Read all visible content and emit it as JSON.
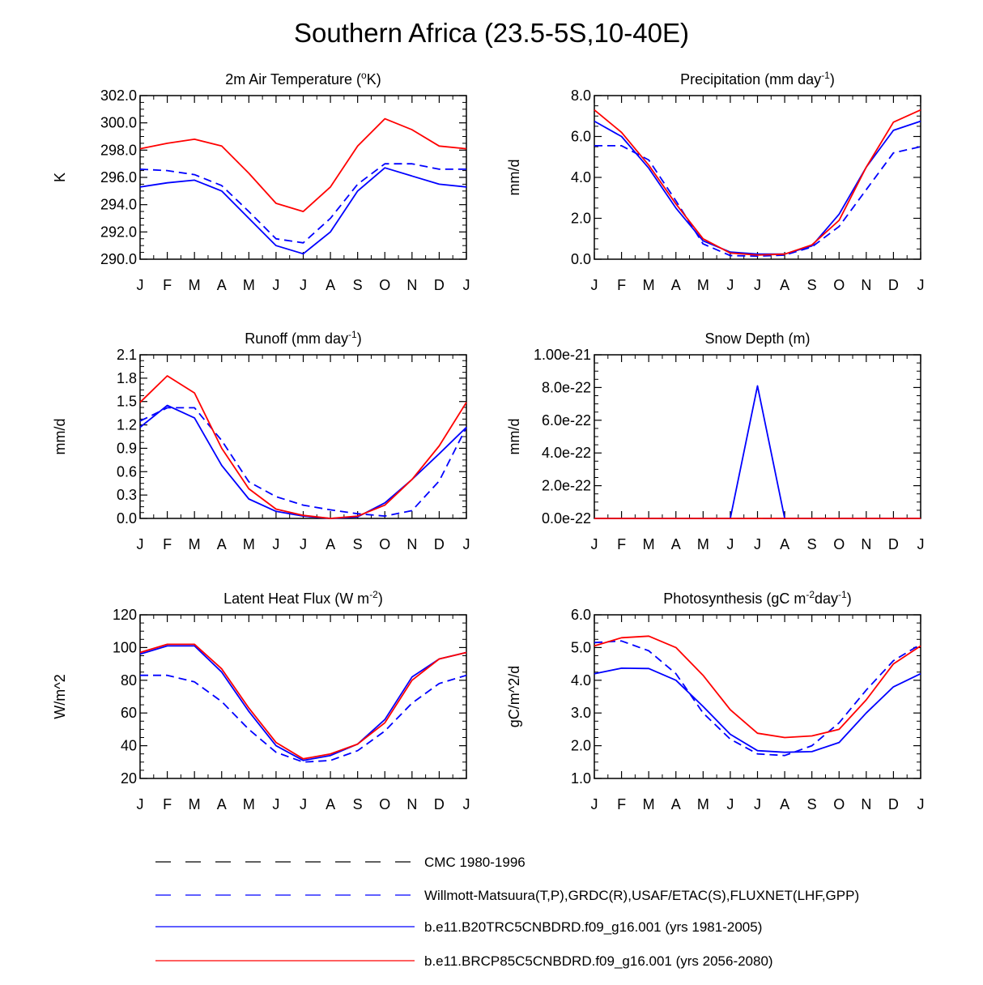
{
  "title": "Southern Africa (23.5-5S,10-40E)",
  "colors": {
    "obs_cmc": "#000000",
    "obs_other": "#0000ff",
    "model_hist": "#0000ff",
    "model_rcp": "#ff0000"
  },
  "legend": [
    {
      "label": "CMC 1980-1996",
      "color": "#000000",
      "style": "dash"
    },
    {
      "label": "Willmott-Matsuura(T,P),GRDC(R),USAF/ETAC(S),FLUXNET(LHF,GPP)",
      "color": "#0000ff",
      "style": "dash"
    },
    {
      "label": "b.e11.B20TRC5CNBDRD.f09_g16.001 (yrs 1981-2005)",
      "color": "#0000ff",
      "style": "solid"
    },
    {
      "label": "b.e11.BRCP85C5CNBDRD.f09_g16.001 (yrs 2056-2080)",
      "color": "#ff0000",
      "style": "solid"
    }
  ],
  "chart_data": [
    {
      "type": "line",
      "title": "2m Air Temperature (",
      "title_sup": "o",
      "title_after": "K)",
      "ylabel": "K",
      "categories": [
        "J",
        "F",
        "M",
        "A",
        "M",
        "J",
        "J",
        "A",
        "S",
        "O",
        "N",
        "D",
        "J"
      ],
      "ylim": [
        290.0,
        302.0
      ],
      "yticks": [
        290.0,
        292.0,
        294.0,
        296.0,
        298.0,
        300.0,
        302.0
      ],
      "ytick_labels": [
        "290.0",
        "292.0",
        "294.0",
        "296.0",
        "298.0",
        "300.0",
        "302.0"
      ],
      "series": [
        {
          "name": "Willmott-Matsuura",
          "color": "#0000ff",
          "style": "dash",
          "values": [
            296.6,
            296.5,
            296.2,
            295.4,
            293.5,
            291.5,
            291.2,
            293.0,
            295.5,
            297.0,
            297.0,
            296.6,
            296.6
          ]
        },
        {
          "name": "b.e11.B20TRC5CNBDRD",
          "color": "#0000ff",
          "style": "solid",
          "values": [
            295.3,
            295.6,
            295.8,
            295.0,
            293.0,
            291.0,
            290.4,
            292.0,
            295.0,
            296.7,
            296.1,
            295.5,
            295.3
          ]
        },
        {
          "name": "b.e11.BRCP85C5CNBDRD",
          "color": "#ff0000",
          "style": "solid",
          "values": [
            298.1,
            298.5,
            298.8,
            298.3,
            296.3,
            294.1,
            293.5,
            295.3,
            298.3,
            300.3,
            299.5,
            298.3,
            298.1
          ]
        }
      ]
    },
    {
      "type": "line",
      "title": "Precipitation (mm day",
      "title_sup": "-1",
      "title_after": ")",
      "ylabel": "mm/d",
      "categories": [
        "J",
        "F",
        "M",
        "A",
        "M",
        "J",
        "J",
        "A",
        "S",
        "O",
        "N",
        "D",
        "J"
      ],
      "ylim": [
        0.0,
        8.0
      ],
      "yticks": [
        0.0,
        2.0,
        4.0,
        6.0,
        8.0
      ],
      "ytick_labels": [
        "0.0",
        "2.0",
        "4.0",
        "6.0",
        "8.0"
      ],
      "series": [
        {
          "name": "Willmott-Matsuura",
          "color": "#0000ff",
          "style": "dash",
          "values": [
            5.55,
            5.55,
            4.85,
            2.85,
            0.75,
            0.18,
            0.15,
            0.2,
            0.6,
            1.6,
            3.4,
            5.2,
            5.5
          ]
        },
        {
          "name": "b.e11.B20TRC5CNBDRD",
          "color": "#0000ff",
          "style": "solid",
          "values": [
            6.75,
            6.0,
            4.45,
            2.5,
            0.9,
            0.35,
            0.25,
            0.25,
            0.65,
            2.2,
            4.5,
            6.3,
            6.75
          ]
        },
        {
          "name": "b.e11.BRCP85C5CNBDRD",
          "color": "#ff0000",
          "style": "solid",
          "values": [
            7.3,
            6.2,
            4.6,
            2.7,
            1.0,
            0.3,
            0.2,
            0.25,
            0.7,
            1.9,
            4.5,
            6.7,
            7.3
          ]
        }
      ]
    },
    {
      "type": "line",
      "title": "Runoff (mm day",
      "title_sup": "-1",
      "title_after": ")",
      "ylabel": "mm/d",
      "categories": [
        "J",
        "F",
        "M",
        "A",
        "M",
        "J",
        "J",
        "A",
        "S",
        "O",
        "N",
        "D",
        "J"
      ],
      "ylim": [
        0.0,
        2.1
      ],
      "yticks": [
        0.0,
        0.3,
        0.6,
        0.9,
        1.2,
        1.5,
        1.8,
        2.1
      ],
      "ytick_labels": [
        "0.0",
        "0.3",
        "0.6",
        "0.9",
        "1.2",
        "1.5",
        "1.8",
        "2.1"
      ],
      "series": [
        {
          "name": "GRDC",
          "color": "#0000ff",
          "style": "dash",
          "values": [
            1.25,
            1.42,
            1.42,
            1.0,
            0.47,
            0.28,
            0.17,
            0.11,
            0.06,
            0.03,
            0.1,
            0.48,
            1.17
          ]
        },
        {
          "name": "b.e11.B20TRC5CNBDRD",
          "color": "#0000ff",
          "style": "solid",
          "values": [
            1.17,
            1.45,
            1.29,
            0.68,
            0.25,
            0.09,
            0.03,
            0.0,
            0.02,
            0.2,
            0.5,
            0.83,
            1.17
          ]
        },
        {
          "name": "b.e11.BRCP85C5CNBDRD",
          "color": "#ff0000",
          "style": "solid",
          "values": [
            1.49,
            1.83,
            1.61,
            0.9,
            0.38,
            0.12,
            0.04,
            0.0,
            0.03,
            0.17,
            0.5,
            0.93,
            1.49
          ]
        }
      ]
    },
    {
      "type": "line",
      "title": "Snow Depth (m)",
      "title_sup": "",
      "title_after": "",
      "ylabel": "mm/d",
      "categories": [
        "J",
        "F",
        "M",
        "A",
        "M",
        "J",
        "J",
        "A",
        "S",
        "O",
        "N",
        "D",
        "J"
      ],
      "ylim": [
        0.0,
        1e-21
      ],
      "yticks": [
        0.0,
        2e-22,
        4e-22,
        6e-22,
        8e-22,
        1e-21
      ],
      "ytick_labels": [
        "0.0e-22",
        "2.0e-22",
        "4.0e-22",
        "6.0e-22",
        "8.0e-22",
        "1.00e-21"
      ],
      "series": [
        {
          "name": "USAF/ETAC",
          "color": "#0000ff",
          "style": "dash",
          "values": [
            0,
            0,
            0,
            0,
            0,
            0,
            0,
            0,
            0,
            0,
            0,
            0,
            0
          ]
        },
        {
          "name": "b.e11.B20TRC5CNBDRD",
          "color": "#0000ff",
          "style": "solid",
          "values": [
            0,
            0,
            0,
            0,
            0,
            0,
            8.1e-22,
            0,
            0,
            0,
            0,
            0,
            0
          ]
        },
        {
          "name": "b.e11.BRCP85C5CNBDRD",
          "color": "#ff0000",
          "style": "solid",
          "values": [
            0,
            0,
            0,
            0,
            0,
            0,
            0,
            0,
            0,
            0,
            0,
            0,
            0
          ]
        }
      ]
    },
    {
      "type": "line",
      "title": "Latent Heat Flux (W m",
      "title_sup": "-2",
      "title_after": ")",
      "ylabel": "W/m^2",
      "categories": [
        "J",
        "F",
        "M",
        "A",
        "M",
        "J",
        "J",
        "A",
        "S",
        "O",
        "N",
        "D",
        "J"
      ],
      "ylim": [
        20,
        120
      ],
      "yticks": [
        20,
        40,
        60,
        80,
        100,
        120
      ],
      "ytick_labels": [
        "20",
        "40",
        "60",
        "80",
        "100",
        "120"
      ],
      "series": [
        {
          "name": "FLUXNET",
          "color": "#0000ff",
          "style": "dash",
          "values": [
            83,
            83,
            79,
            67,
            50,
            36,
            30,
            31,
            37,
            49,
            66,
            78,
            83
          ]
        },
        {
          "name": "b.e11.B20TRC5CNBDRD",
          "color": "#0000ff",
          "style": "solid",
          "values": [
            96,
            101,
            101,
            85,
            61,
            40,
            31,
            34,
            41,
            56,
            82,
            93,
            97
          ]
        },
        {
          "name": "b.e11.BRCP85C5CNBDRD",
          "color": "#ff0000",
          "style": "solid",
          "values": [
            97,
            102,
            102,
            87,
            63,
            42,
            32,
            35,
            41,
            54,
            80,
            93,
            97
          ]
        }
      ]
    },
    {
      "type": "line",
      "title": "Photosynthesis (gC m",
      "title_sup": "-2",
      "title_after": "day",
      "title_sup2": "-1",
      "title_after2": ")",
      "ylabel": "gC/m^2/d",
      "categories": [
        "J",
        "F",
        "M",
        "A",
        "M",
        "J",
        "J",
        "A",
        "S",
        "O",
        "N",
        "D",
        "J"
      ],
      "ylim": [
        1.0,
        6.0
      ],
      "yticks": [
        1.0,
        2.0,
        3.0,
        4.0,
        5.0,
        6.0
      ],
      "ytick_labels": [
        "1.0",
        "2.0",
        "3.0",
        "4.0",
        "5.0",
        "6.0"
      ],
      "series": [
        {
          "name": "FLUXNET",
          "color": "#0000ff",
          "style": "dash",
          "values": [
            5.15,
            5.2,
            4.9,
            4.2,
            3.0,
            2.2,
            1.75,
            1.7,
            2.0,
            2.7,
            3.7,
            4.6,
            5.1
          ]
        },
        {
          "name": "b.e11.B20TRC5CNBDRD",
          "color": "#0000ff",
          "style": "solid",
          "values": [
            4.2,
            4.37,
            4.36,
            4.0,
            3.2,
            2.35,
            1.85,
            1.8,
            1.82,
            2.1,
            3.0,
            3.8,
            4.2
          ]
        },
        {
          "name": "b.e11.BRCP85C5CNBDRD",
          "color": "#ff0000",
          "style": "solid",
          "values": [
            5.05,
            5.3,
            5.35,
            5.0,
            4.15,
            3.1,
            2.38,
            2.25,
            2.3,
            2.5,
            3.4,
            4.5,
            5.05
          ]
        }
      ]
    }
  ]
}
